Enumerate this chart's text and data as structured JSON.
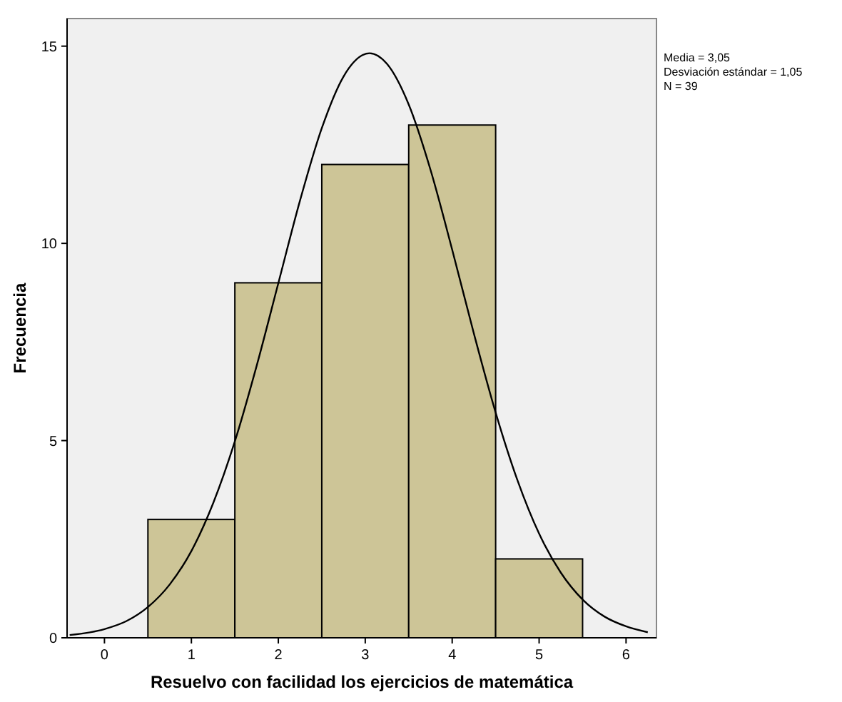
{
  "chart_data": {
    "type": "histogram",
    "xlabel": "Resuelvo con facilidad los ejercicios de matemática",
    "ylabel": "Frecuencia",
    "xlim": [
      -0.43,
      6.35
    ],
    "ylim": [
      0,
      15.7
    ],
    "xticks": [
      0,
      1,
      2,
      3,
      4,
      5,
      6
    ],
    "yticks": [
      0,
      5,
      10,
      15
    ],
    "annotations": [
      "Media = 3,05",
      "Desviación estándar = 1,05",
      "N = 39"
    ],
    "series": [
      {
        "type": "histogram",
        "color": "#cdc597",
        "bins": [
          0.5,
          1.5,
          2.5,
          3.5,
          4.5,
          5.5
        ],
        "values": [
          3,
          9,
          12,
          13,
          2
        ]
      },
      {
        "type": "line",
        "color": "#000000",
        "x": [
          -0.4,
          0,
          0.25,
          0.5,
          0.75,
          1,
          1.25,
          1.5,
          1.75,
          2,
          2.25,
          2.5,
          2.75,
          3.05,
          3.25,
          3.5,
          3.75,
          4,
          4.25,
          4.5,
          4.75,
          5,
          5.25,
          5.5,
          5.75,
          6,
          6.25
        ],
        "values": [
          0.07,
          0.22,
          0.42,
          0.78,
          1.35,
          2.2,
          3.41,
          4.98,
          6.89,
          8.99,
          11.09,
          12.92,
          14.23,
          14.82,
          14.55,
          13.52,
          11.87,
          9.84,
          7.71,
          5.71,
          4.0,
          2.64,
          1.65,
          0.97,
          0.54,
          0.29,
          0.14
        ]
      }
    ]
  }
}
